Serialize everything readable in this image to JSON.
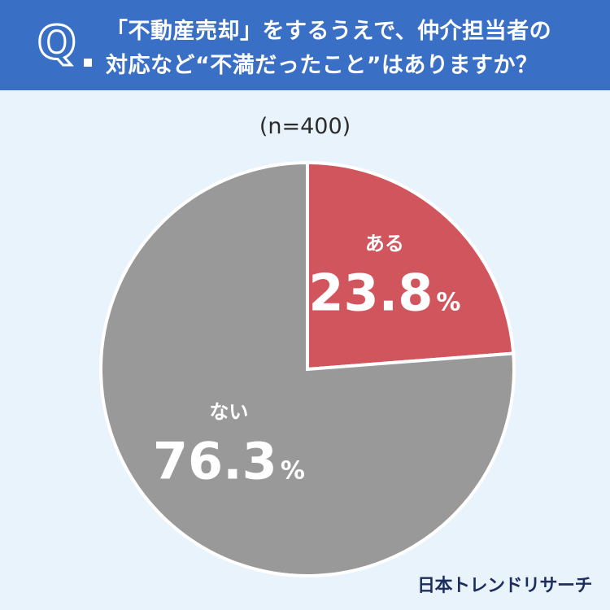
{
  "header": {
    "q_mark": "Q",
    "question_line1": "「不動産売却」をするうえで、仲介担当者の",
    "question_line2": "対応など“不満だったこと”はありますか？"
  },
  "sample_size_label": "(n=400)",
  "brand": "日本トレンドリサーチ",
  "colors": {
    "header_bg": "#3a6fc6",
    "background": "#e9f3fb",
    "slice_yes": "#d0555d",
    "slice_no": "#999999"
  },
  "chart_data": {
    "type": "pie",
    "n": 400,
    "slices": [
      {
        "label": "ある",
        "value": 23.8,
        "value_text": "23.8",
        "unit": "%",
        "color": "#d0555d"
      },
      {
        "label": "ない",
        "value": 76.3,
        "value_text": "76.3",
        "unit": "%",
        "color": "#999999"
      }
    ]
  }
}
